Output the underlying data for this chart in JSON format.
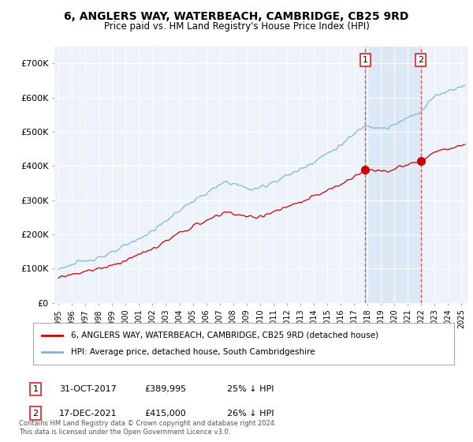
{
  "title": "6, ANGLERS WAY, WATERBEACH, CAMBRIDGE, CB25 9RD",
  "subtitle": "Price paid vs. HM Land Registry's House Price Index (HPI)",
  "legend_line1": "6, ANGLERS WAY, WATERBEACH, CAMBRIDGE, CB25 9RD (detached house)",
  "legend_line2": "HPI: Average price, detached house, South Cambridgeshire",
  "sale1_date": "31-OCT-2017",
  "sale1_price": "£389,995",
  "sale1_hpi": "25% ↓ HPI",
  "sale1_year": 2017.83,
  "sale1_value": 389995,
  "sale2_date": "17-DEC-2021",
  "sale2_price": "£415,000",
  "sale2_hpi": "26% ↓ HPI",
  "sale2_year": 2021.96,
  "sale2_value": 415000,
  "yticks": [
    0,
    100000,
    200000,
    300000,
    400000,
    500000,
    600000,
    700000
  ],
  "ytick_labels": [
    "£0",
    "£100K",
    "£200K",
    "£300K",
    "£400K",
    "£500K",
    "£600K",
    "£700K"
  ],
  "hpi_color": "#7ab8d9",
  "price_color": "#cc0000",
  "background_color": "#ffffff",
  "plot_bg_color": "#eef2fa",
  "grid_color": "#ffffff",
  "vline_color": "#dd3333",
  "shade_color": "#dce8f5",
  "footnote": "Contains HM Land Registry data © Crown copyright and database right 2024.\nThis data is licensed under the Open Government Licence v3.0."
}
